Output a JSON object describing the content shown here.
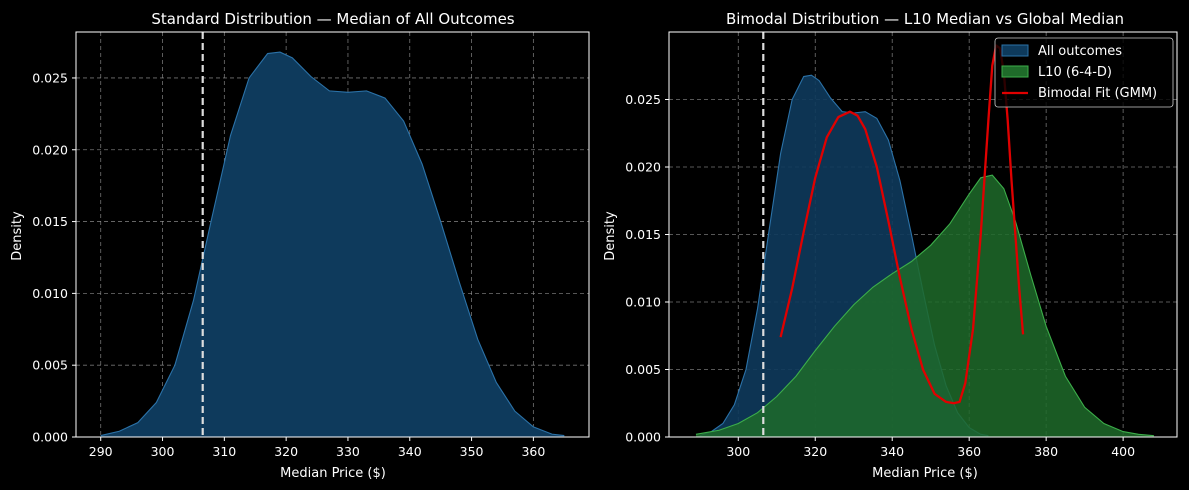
{
  "chart_data": [
    {
      "type": "area",
      "title": "Standard Distribution — Median of All Outcomes",
      "xlabel": "Median Price ($)",
      "ylabel": "Density",
      "xlim": [
        286,
        369
      ],
      "ylim": [
        0,
        0.0282
      ],
      "xticks": [
        290,
        300,
        310,
        320,
        330,
        340,
        350,
        360
      ],
      "yticks": [
        0.0,
        0.005,
        0.01,
        0.015,
        0.02,
        0.025
      ],
      "ytick_labels": [
        "0.000",
        "0.005",
        "0.010",
        "0.015",
        "0.020",
        "0.025"
      ],
      "grid": true,
      "vline": {
        "x": 306.5,
        "style": "dashed",
        "color": "#dddddd"
      },
      "series": [
        {
          "name": "All outcomes",
          "fill": "#0e3a5c",
          "stroke": "#2b72a8",
          "x": [
            290,
            293,
            296,
            299,
            302,
            305,
            308,
            311,
            314,
            317,
            319,
            321,
            324,
            327,
            330,
            333,
            336,
            339,
            342,
            345,
            348,
            351,
            354,
            357,
            360,
            363,
            365
          ],
          "y": [
            0.0001,
            0.0004,
            0.001,
            0.0024,
            0.005,
            0.0095,
            0.0153,
            0.021,
            0.025,
            0.0267,
            0.0268,
            0.0264,
            0.0251,
            0.0241,
            0.024,
            0.0241,
            0.0236,
            0.022,
            0.019,
            0.015,
            0.0108,
            0.0068,
            0.0038,
            0.0018,
            0.0007,
            0.0002,
            0.0001
          ]
        }
      ]
    },
    {
      "type": "area",
      "title": "Bimodal Distribution — L10 Median vs Global Median",
      "xlabel": "Median Price ($)",
      "ylabel": "Density",
      "xlim": [
        282,
        414
      ],
      "ylim": [
        0,
        0.03
      ],
      "xticks": [
        300,
        320,
        340,
        360,
        380,
        400
      ],
      "yticks": [
        0.0,
        0.005,
        0.01,
        0.015,
        0.02,
        0.025
      ],
      "ytick_labels": [
        "0.000",
        "0.005",
        "0.010",
        "0.015",
        "0.020",
        "0.025"
      ],
      "grid": true,
      "vline": {
        "x": 306.5,
        "style": "dashed",
        "color": "#dddddd"
      },
      "legend": {
        "position": "top-right"
      },
      "series": [
        {
          "name": "All outcomes",
          "kind": "area",
          "fill": "#0e3a5c",
          "stroke": "#2b72a8",
          "x": [
            290,
            293,
            296,
            299,
            302,
            305,
            308,
            311,
            314,
            317,
            319,
            321,
            324,
            327,
            330,
            333,
            336,
            339,
            342,
            345,
            348,
            351,
            354,
            357,
            360,
            363,
            365
          ],
          "y": [
            0.0001,
            0.0004,
            0.001,
            0.0024,
            0.005,
            0.0095,
            0.0153,
            0.021,
            0.025,
            0.0267,
            0.0268,
            0.0264,
            0.0251,
            0.0241,
            0.024,
            0.0241,
            0.0236,
            0.022,
            0.019,
            0.015,
            0.0108,
            0.0068,
            0.0038,
            0.0018,
            0.0007,
            0.0002,
            0.0001
          ]
        },
        {
          "name": "L10 (6-4-D)",
          "kind": "area",
          "fill": "#1f6b2a",
          "stroke": "#3cae4a",
          "x": [
            289,
            295,
            300,
            305,
            310,
            315,
            320,
            325,
            330,
            335,
            340,
            345,
            350,
            355,
            360,
            363,
            366,
            369,
            372,
            376,
            380,
            385,
            390,
            395,
            400,
            404,
            408
          ],
          "y": [
            0.0002,
            0.0005,
            0.001,
            0.0018,
            0.003,
            0.0045,
            0.0064,
            0.0082,
            0.0098,
            0.0111,
            0.0121,
            0.013,
            0.0142,
            0.0158,
            0.018,
            0.0192,
            0.0194,
            0.0184,
            0.016,
            0.012,
            0.0082,
            0.0045,
            0.0022,
            0.001,
            0.0004,
            0.0002,
            0.0001
          ]
        },
        {
          "name": "Bimodal Fit (GMM)",
          "kind": "line",
          "stroke": "#e00000",
          "x": [
            311,
            314,
            317,
            320,
            323,
            326,
            329,
            331,
            333,
            336,
            339,
            342,
            345,
            348,
            351,
            354,
            356,
            357.5,
            359,
            361,
            363,
            365,
            366,
            367,
            368,
            369,
            370,
            371,
            372,
            373,
            374
          ],
          "y": [
            0.0074,
            0.011,
            0.0152,
            0.0192,
            0.0222,
            0.0237,
            0.0241,
            0.0238,
            0.0228,
            0.02,
            0.016,
            0.0118,
            0.008,
            0.005,
            0.0032,
            0.0026,
            0.0025,
            0.0026,
            0.004,
            0.008,
            0.015,
            0.0235,
            0.0275,
            0.029,
            0.0288,
            0.027,
            0.0235,
            0.019,
            0.015,
            0.011,
            0.0076
          ]
        }
      ]
    }
  ]
}
